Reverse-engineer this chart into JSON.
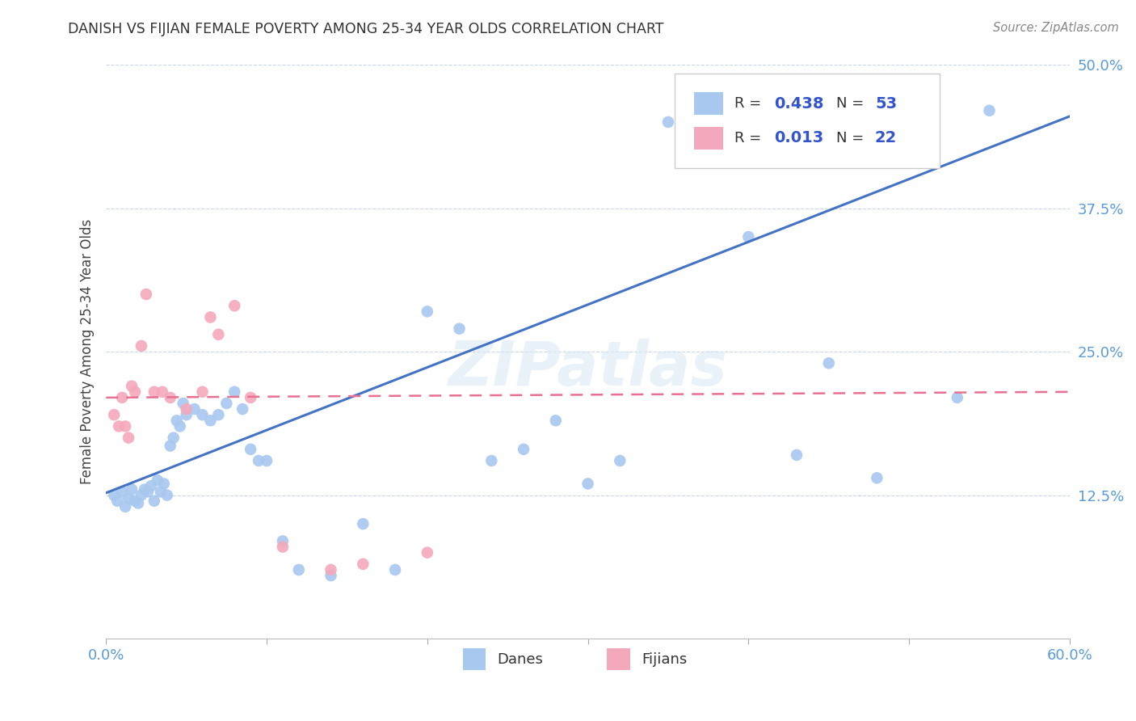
{
  "title": "DANISH VS FIJIAN FEMALE POVERTY AMONG 25-34 YEAR OLDS CORRELATION CHART",
  "source": "Source: ZipAtlas.com",
  "ylabel": "Female Poverty Among 25-34 Year Olds",
  "xlim": [
    0.0,
    0.6
  ],
  "ylim": [
    0.0,
    0.5
  ],
  "xticks": [
    0.0,
    0.1,
    0.2,
    0.3,
    0.4,
    0.5,
    0.6
  ],
  "xticklabels": [
    "0.0%",
    "",
    "",
    "",
    "",
    "",
    "60.0%"
  ],
  "yticks": [
    0.0,
    0.125,
    0.25,
    0.375,
    0.5
  ],
  "yticklabels": [
    "",
    "12.5%",
    "25.0%",
    "37.5%",
    "50.0%"
  ],
  "danes_R": 0.438,
  "danes_N": 53,
  "fijians_R": 0.013,
  "fijians_N": 22,
  "danes_color": "#A8C8F0",
  "fijians_color": "#F4A8BC",
  "danes_line_color": "#4472C4",
  "fijians_line_color": "#E87090",
  "legend_danes_label": "Danes",
  "legend_fijians_label": "Fijians",
  "watermark": "ZIPatlas",
  "danes_x": [
    0.005,
    0.007,
    0.01,
    0.012,
    0.014,
    0.016,
    0.018,
    0.02,
    0.022,
    0.024,
    0.026,
    0.028,
    0.03,
    0.032,
    0.034,
    0.036,
    0.038,
    0.04,
    0.042,
    0.044,
    0.046,
    0.048,
    0.05,
    0.055,
    0.06,
    0.065,
    0.07,
    0.075,
    0.08,
    0.085,
    0.09,
    0.095,
    0.1,
    0.11,
    0.12,
    0.14,
    0.16,
    0.18,
    0.2,
    0.22,
    0.24,
    0.26,
    0.28,
    0.3,
    0.32,
    0.35,
    0.38,
    0.4,
    0.43,
    0.45,
    0.48,
    0.53,
    0.55
  ],
  "danes_y": [
    0.125,
    0.12,
    0.128,
    0.115,
    0.122,
    0.13,
    0.12,
    0.118,
    0.125,
    0.13,
    0.128,
    0.133,
    0.12,
    0.138,
    0.128,
    0.135,
    0.125,
    0.168,
    0.175,
    0.19,
    0.185,
    0.205,
    0.195,
    0.2,
    0.195,
    0.19,
    0.195,
    0.205,
    0.215,
    0.2,
    0.165,
    0.155,
    0.155,
    0.085,
    0.06,
    0.055,
    0.1,
    0.06,
    0.285,
    0.27,
    0.155,
    0.165,
    0.19,
    0.135,
    0.155,
    0.45,
    0.415,
    0.35,
    0.16,
    0.24,
    0.14,
    0.21,
    0.46
  ],
  "fijians_x": [
    0.005,
    0.008,
    0.01,
    0.012,
    0.014,
    0.016,
    0.018,
    0.022,
    0.025,
    0.03,
    0.035,
    0.04,
    0.05,
    0.06,
    0.065,
    0.07,
    0.08,
    0.09,
    0.11,
    0.14,
    0.16,
    0.2
  ],
  "fijians_y": [
    0.195,
    0.185,
    0.21,
    0.185,
    0.175,
    0.22,
    0.215,
    0.255,
    0.3,
    0.215,
    0.215,
    0.21,
    0.2,
    0.215,
    0.28,
    0.265,
    0.29,
    0.21,
    0.08,
    0.06,
    0.065,
    0.075
  ],
  "danes_line_x0": 0.0,
  "danes_line_y0": 0.127,
  "danes_line_x1": 0.6,
  "danes_line_y1": 0.455,
  "fijians_line_x0": 0.0,
  "fijians_line_y0": 0.21,
  "fijians_line_x1": 0.6,
  "fijians_line_y1": 0.215
}
